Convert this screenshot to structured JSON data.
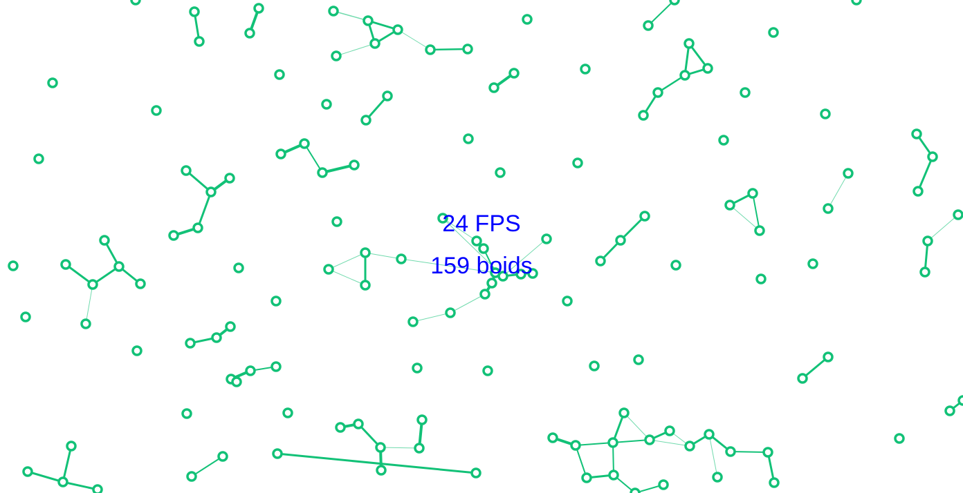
{
  "hud": {
    "fps_text": "24 FPS",
    "count_text": "159 boids"
  },
  "colors": {
    "boid": "#12c177",
    "background": "#ffffff",
    "hud_text": "#0000ff"
  },
  "simulation": {
    "boid_count": 159
  }
}
